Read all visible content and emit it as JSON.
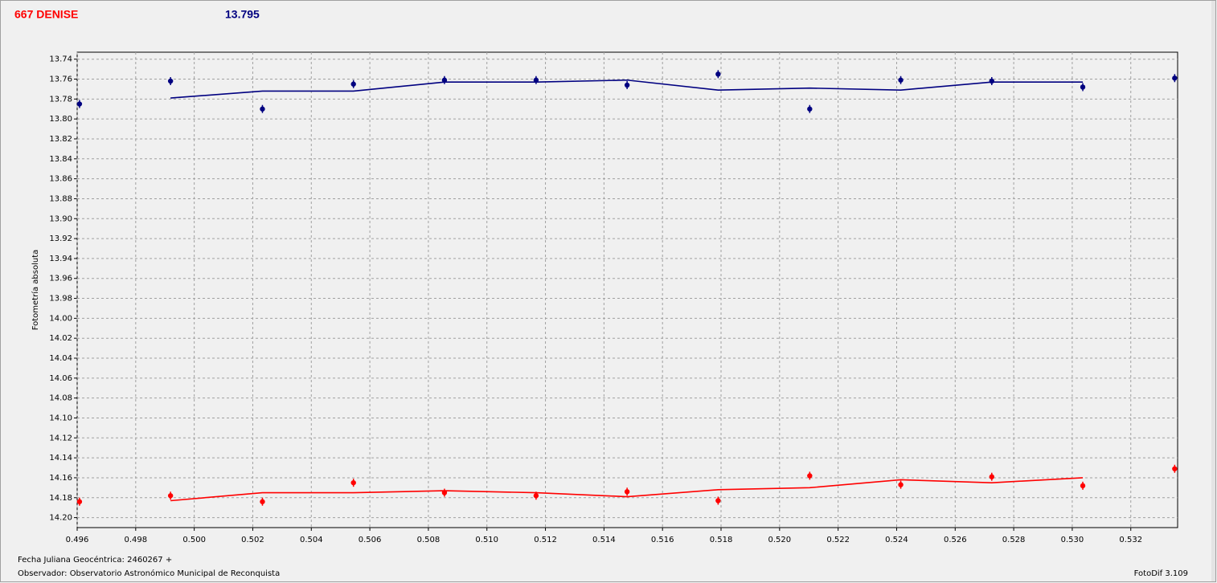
{
  "chart_data": {
    "type": "scatter",
    "title": "667 DENISE",
    "subtitle": "13.795",
    "y_label": "Fotometría absoluta",
    "footer_date": "Fecha Juliana Geocéntrica: 2460267 +",
    "footer_observer": "Observador: Observatorio Astronómico Municipal de Reconquista",
    "software": "FotoDif 3.109",
    "xlim": [
      0.496,
      0.5336
    ],
    "ylim": [
      13.733,
      14.21
    ],
    "y_inverted": true,
    "grid": true,
    "xticks": [
      0.496,
      0.498,
      {
        "value": 0.5,
        "label": "0.500"
      },
      0.502,
      0.504,
      0.506,
      0.508,
      {
        "value": 0.51,
        "label": "0.510"
      },
      0.512,
      0.514,
      0.516,
      0.518,
      {
        "value": 0.52,
        "label": "0.520"
      },
      0.522,
      0.524,
      0.526,
      0.528,
      {
        "value": 0.53,
        "label": "0.530"
      },
      0.532
    ],
    "yticks": [
      13.74,
      13.76,
      13.78,
      {
        "value": 13.8,
        "label": "13.80"
      },
      13.82,
      13.84,
      13.86,
      13.88,
      {
        "value": 13.9,
        "label": "13.90"
      },
      13.92,
      13.94,
      13.96,
      13.98,
      {
        "value": 14.0,
        "label": "14.00"
      },
      14.02,
      14.04,
      14.06,
      14.08,
      {
        "value": 14.1,
        "label": "14.10"
      },
      14.12,
      14.14,
      14.16,
      14.18,
      {
        "value": 14.2,
        "label": "14.20"
      }
    ],
    "series": [
      {
        "color": "#000080",
        "mode": "markers",
        "x": [
          0.49608,
          0.49919,
          0.50233,
          0.50544,
          0.50855,
          0.51168,
          0.51479,
          0.5179,
          0.52103,
          0.52414,
          0.52725,
          0.53036,
          0.5335
        ],
        "values": [
          13.785,
          13.762,
          13.79,
          13.765,
          13.761,
          13.761,
          13.766,
          13.755,
          13.79,
          13.761,
          13.762,
          13.768,
          13.759
        ]
      },
      {
        "color": "#000080",
        "mode": "line",
        "x": [
          0.49919,
          0.50233,
          0.50544,
          0.50855,
          0.51168,
          0.51479,
          0.5179,
          0.52103,
          0.52414,
          0.52725,
          0.53036
        ],
        "values": [
          13.779,
          13.772,
          13.772,
          13.763,
          13.763,
          13.761,
          13.771,
          13.769,
          13.771,
          13.763,
          13.763
        ]
      },
      {
        "color": "#ff0000",
        "mode": "markers",
        "x": [
          0.49608,
          0.49919,
          0.50233,
          0.50544,
          0.50855,
          0.51168,
          0.51479,
          0.5179,
          0.52103,
          0.52414,
          0.52725,
          0.53036,
          0.5335
        ],
        "values": [
          14.184,
          14.178,
          14.184,
          14.165,
          14.175,
          14.178,
          14.174,
          14.183,
          14.158,
          14.167,
          14.159,
          14.168,
          14.151
        ]
      },
      {
        "color": "#ff0000",
        "mode": "line",
        "x": [
          0.49919,
          0.50233,
          0.50544,
          0.50855,
          0.51168,
          0.51479,
          0.5179,
          0.52103,
          0.52414,
          0.52725,
          0.53036
        ],
        "values": [
          14.183,
          14.175,
          14.175,
          14.173,
          14.175,
          14.179,
          14.172,
          14.17,
          14.162,
          14.165,
          14.16
        ]
      }
    ]
  }
}
